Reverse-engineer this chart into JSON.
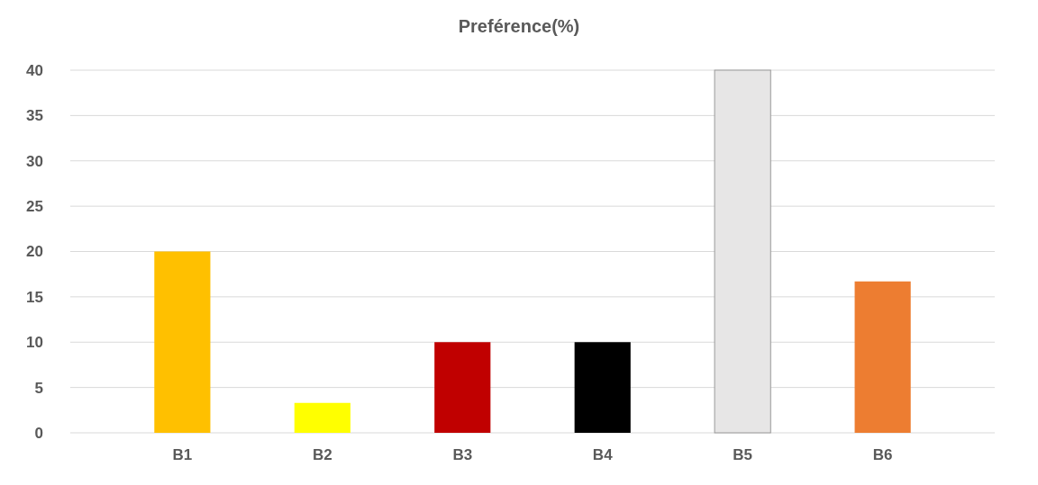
{
  "chart_data": {
    "type": "bar",
    "title": "Preférence(%)",
    "categories": [
      "B1",
      "B2",
      "B3",
      "B4",
      "B5",
      "B6"
    ],
    "values": [
      20,
      3.3,
      10,
      10,
      40,
      16.7
    ],
    "colors": [
      "#ffc000",
      "#ffff00",
      "#c00000",
      "#000000",
      "#e7e6e6",
      "#ed7d31"
    ],
    "ylim": [
      0,
      40
    ],
    "yticks": [
      0,
      5,
      10,
      15,
      20,
      25,
      30,
      35,
      40
    ],
    "grid": "y"
  }
}
